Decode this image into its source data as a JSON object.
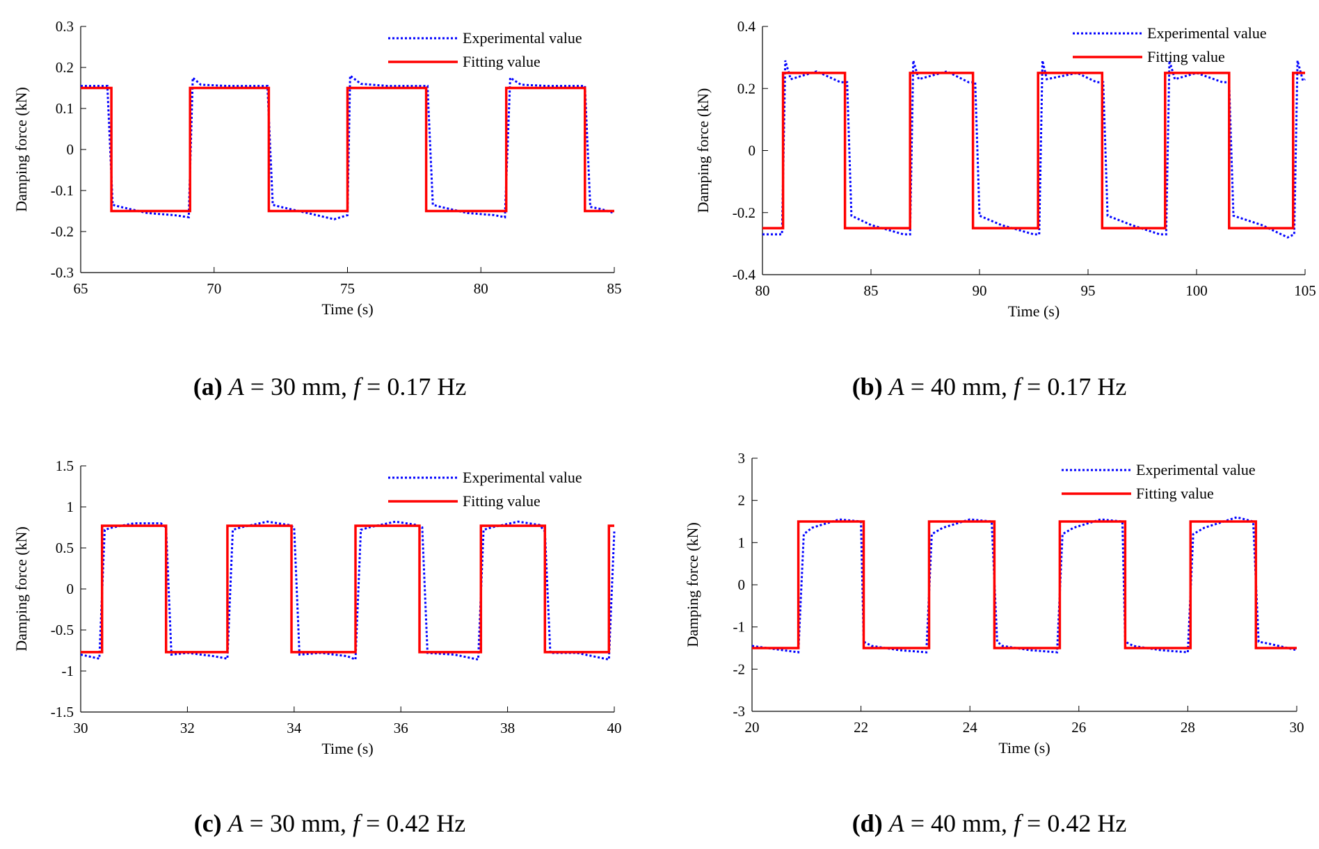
{
  "chart_data": [
    {
      "id": "a",
      "type": "line",
      "caption": {
        "letter": "(a)",
        "amp_var": "A",
        "amp_text": " = 30 mm, ",
        "freq_var": "f",
        "freq_text": " = 0.17 Hz"
      },
      "xlabel": "Time (s)",
      "ylabel": "Damping force (kN)",
      "xlim": [
        65,
        85
      ],
      "ylim": [
        -0.3,
        0.3
      ],
      "xticks": [
        65,
        70,
        75,
        80,
        85
      ],
      "xtick_labels": [
        "65",
        "70",
        "75",
        "80",
        "85"
      ],
      "yticks": [
        -0.3,
        -0.2,
        -0.1,
        0,
        0.1,
        0.2,
        0.3
      ],
      "ytick_labels": [
        "-0.3",
        "-0.2",
        "-0.1",
        "0",
        "0.1",
        "0.2",
        "0.3"
      ],
      "legend": {
        "position": "top-right",
        "entries": [
          "Experimental value",
          "Fitting value"
        ]
      },
      "series": [
        {
          "name": "Experimental value",
          "style": "dotted",
          "color": "#0000ff",
          "x": [
            65,
            66.0,
            66.2,
            66.5,
            67.5,
            68.5,
            69.05,
            69.2,
            69.5,
            70.5,
            71.5,
            72.0,
            72.2,
            72.5,
            73.5,
            74.5,
            75.0,
            75.1,
            75.5,
            76.5,
            77.5,
            78.0,
            78.2,
            78.5,
            79.5,
            80.5,
            80.9,
            81.1,
            81.5,
            82.5,
            83.5,
            83.9,
            84.1,
            84.5,
            85
          ],
          "values": [
            0.155,
            0.155,
            -0.135,
            -0.14,
            -0.155,
            -0.16,
            -0.165,
            0.175,
            0.158,
            0.155,
            0.155,
            0.155,
            -0.135,
            -0.14,
            -0.155,
            -0.17,
            -0.16,
            0.18,
            0.16,
            0.155,
            0.155,
            0.155,
            -0.135,
            -0.14,
            -0.155,
            -0.16,
            -0.165,
            0.175,
            0.158,
            0.155,
            0.155,
            0.155,
            -0.14,
            -0.145,
            -0.155
          ]
        },
        {
          "name": "Fitting value",
          "style": "solid",
          "color": "#ff0000",
          "x": [
            65,
            66.15,
            66.15,
            69.1,
            69.1,
            72.05,
            72.05,
            75.0,
            75.0,
            77.95,
            77.95,
            80.95,
            80.95,
            83.9,
            83.9,
            85
          ],
          "values": [
            0.15,
            0.15,
            -0.15,
            -0.15,
            0.15,
            0.15,
            -0.15,
            -0.15,
            0.15,
            0.15,
            -0.15,
            -0.15,
            0.15,
            0.15,
            -0.15,
            -0.15
          ]
        }
      ]
    },
    {
      "id": "b",
      "type": "line",
      "caption": {
        "letter": "(b)",
        "amp_var": "A",
        "amp_text": " = 40 mm, ",
        "freq_var": "f",
        "freq_text": " = 0.17 Hz"
      },
      "xlabel": "Time (s)",
      "ylabel": "Damping force (kN)",
      "xlim": [
        80,
        105
      ],
      "ylim": [
        -0.4,
        0.4
      ],
      "xticks": [
        80,
        85,
        90,
        95,
        100,
        105
      ],
      "xtick_labels": [
        "80",
        "85",
        "90",
        "95",
        "100",
        "105"
      ],
      "yticks": [
        -0.4,
        -0.2,
        0,
        0.2,
        0.4
      ],
      "ytick_labels": [
        "-0.4",
        "-0.2",
        "0",
        "0.2",
        "0.4"
      ],
      "legend": {
        "position": "top-right",
        "entries": [
          "Experimental value",
          "Fitting value"
        ]
      },
      "series": [
        {
          "name": "Experimental value",
          "style": "dotted",
          "color": "#0000ff",
          "x": [
            80,
            80.9,
            81.05,
            81.3,
            82.5,
            83.6,
            83.9,
            84.1,
            85,
            86.5,
            86.8,
            86.95,
            87.2,
            88.5,
            89.5,
            89.8,
            90.0,
            91.0,
            92.5,
            92.75,
            92.9,
            93.1,
            94.5,
            95.4,
            95.7,
            95.9,
            97.0,
            98.3,
            98.6,
            98.75,
            99.0,
            100.0,
            101.2,
            101.5,
            101.7,
            103.0,
            104.2,
            104.5,
            104.65,
            104.9,
            105
          ],
          "values": [
            -0.27,
            -0.27,
            0.29,
            0.23,
            0.255,
            0.22,
            0.22,
            -0.21,
            -0.24,
            -0.27,
            -0.27,
            0.29,
            0.23,
            0.255,
            0.22,
            0.22,
            -0.21,
            -0.24,
            -0.27,
            -0.27,
            0.29,
            0.23,
            0.25,
            0.22,
            0.22,
            -0.21,
            -0.24,
            -0.27,
            -0.27,
            0.29,
            0.23,
            0.25,
            0.22,
            0.22,
            -0.21,
            -0.24,
            -0.28,
            -0.27,
            0.29,
            0.225,
            0.23
          ]
        },
        {
          "name": "Fitting value",
          "style": "solid",
          "color": "#ff0000",
          "x": [
            80,
            80.95,
            80.95,
            83.8,
            83.8,
            86.8,
            86.8,
            89.7,
            89.7,
            92.7,
            92.7,
            95.65,
            95.65,
            98.55,
            98.55,
            101.5,
            101.5,
            104.45,
            104.45,
            105
          ],
          "values": [
            -0.25,
            -0.25,
            0.25,
            0.25,
            -0.25,
            -0.25,
            0.25,
            0.25,
            -0.25,
            -0.25,
            0.25,
            0.25,
            -0.25,
            -0.25,
            0.25,
            0.25,
            -0.25,
            -0.25,
            0.25,
            0.25
          ]
        }
      ]
    },
    {
      "id": "c",
      "type": "line",
      "caption": {
        "letter": "(c)",
        "amp_var": "A",
        "amp_text": " = 30 mm, ",
        "freq_var": "f",
        "freq_text": " = 0.42 Hz"
      },
      "xlabel": "Time (s)",
      "ylabel": "Damping force (kN)",
      "xlim": [
        30,
        40
      ],
      "ylim": [
        -1.5,
        1.5
      ],
      "xticks": [
        30,
        32,
        34,
        36,
        38,
        40
      ],
      "xtick_labels": [
        "30",
        "32",
        "34",
        "36",
        "38",
        "40"
      ],
      "yticks": [
        -1.5,
        -1,
        -0.5,
        0,
        0.5,
        1,
        1.5
      ],
      "ytick_labels": [
        "-1.5",
        "-1",
        "-0.5",
        "0",
        "0.5",
        "1",
        "1.5"
      ],
      "legend": {
        "position": "top-right",
        "entries": [
          "Experimental value",
          "Fitting value"
        ]
      },
      "series": [
        {
          "name": "Experimental value",
          "style": "dotted",
          "color": "#0000ff",
          "x": [
            30,
            30.35,
            30.45,
            30.6,
            31.0,
            31.5,
            31.6,
            31.7,
            32.0,
            32.5,
            32.75,
            32.85,
            33.0,
            33.5,
            33.9,
            34.0,
            34.1,
            34.5,
            35.0,
            35.15,
            35.25,
            35.4,
            35.9,
            36.3,
            36.4,
            36.5,
            37.0,
            37.45,
            37.55,
            37.7,
            38.2,
            38.6,
            38.7,
            38.8,
            39.3,
            39.9,
            40
          ],
          "values": [
            -0.8,
            -0.85,
            0.72,
            0.75,
            0.8,
            0.8,
            0.75,
            -0.8,
            -0.78,
            -0.82,
            -0.85,
            0.72,
            0.75,
            0.82,
            0.78,
            0.75,
            -0.8,
            -0.78,
            -0.82,
            -0.86,
            0.72,
            0.75,
            0.82,
            0.78,
            0.75,
            -0.78,
            -0.8,
            -0.86,
            0.72,
            0.75,
            0.82,
            0.78,
            0.7,
            -0.78,
            -0.78,
            -0.86,
            0.7
          ]
        },
        {
          "name": "Fitting value",
          "style": "solid",
          "color": "#ff0000",
          "x": [
            30,
            30.4,
            30.4,
            31.6,
            31.6,
            32.75,
            32.75,
            33.95,
            33.95,
            35.15,
            35.15,
            36.35,
            36.35,
            37.5,
            37.5,
            38.7,
            38.7,
            39.9,
            39.9,
            40
          ],
          "values": [
            -0.77,
            -0.77,
            0.77,
            0.77,
            -0.77,
            -0.77,
            0.77,
            0.77,
            -0.77,
            -0.77,
            0.77,
            0.77,
            -0.77,
            -0.77,
            0.77,
            0.77,
            -0.77,
            -0.77,
            0.77,
            0.77
          ]
        }
      ]
    },
    {
      "id": "d",
      "type": "line",
      "caption": {
        "letter": "(d)",
        "amp_var": "A",
        "amp_text": " = 40 mm, ",
        "freq_var": "f",
        "freq_text": " = 0.42 Hz"
      },
      "xlabel": "Time (s)",
      "ylabel": "Damping force (kN)",
      "xlim": [
        20,
        30
      ],
      "ylim": [
        -3,
        3
      ],
      "xticks": [
        20,
        22,
        24,
        26,
        28,
        30
      ],
      "xtick_labels": [
        "20",
        "22",
        "24",
        "26",
        "28",
        "30"
      ],
      "yticks": [
        -3,
        -2,
        -1,
        0,
        1,
        2,
        3
      ],
      "ytick_labels": [
        "-3",
        "-2",
        "-1",
        "0",
        "1",
        "2",
        "3"
      ],
      "legend": {
        "position": "top-right",
        "entries": [
          "Experimental value",
          "Fitting value"
        ]
      },
      "series": [
        {
          "name": "Experimental value",
          "style": "dotted",
          "color": "#0000ff",
          "x": [
            20,
            20.85,
            20.95,
            21.1,
            21.6,
            22.0,
            22.05,
            22.2,
            22.7,
            23.2,
            23.3,
            23.5,
            24.0,
            24.4,
            24.5,
            24.6,
            25.1,
            25.6,
            25.7,
            25.9,
            26.4,
            26.8,
            26.85,
            27.0,
            27.5,
            28.0,
            28.1,
            28.3,
            28.9,
            29.2,
            29.3,
            29.5,
            30
          ],
          "values": [
            -1.45,
            -1.6,
            1.2,
            1.35,
            1.55,
            1.5,
            -1.35,
            -1.45,
            -1.55,
            -1.6,
            1.2,
            1.35,
            1.55,
            1.5,
            -1.35,
            -1.45,
            -1.55,
            -1.6,
            1.2,
            1.35,
            1.55,
            1.5,
            -1.35,
            -1.45,
            -1.55,
            -1.6,
            1.2,
            1.35,
            1.6,
            1.5,
            -1.35,
            -1.4,
            -1.55
          ]
        },
        {
          "name": "Fitting value",
          "style": "solid",
          "color": "#ff0000",
          "x": [
            20,
            20.85,
            20.85,
            22.05,
            22.05,
            23.25,
            23.25,
            24.45,
            24.45,
            25.65,
            25.65,
            26.85,
            26.85,
            28.05,
            28.05,
            29.25,
            29.25,
            30
          ],
          "values": [
            -1.5,
            -1.5,
            1.5,
            1.5,
            -1.5,
            -1.5,
            1.5,
            1.5,
            -1.5,
            -1.5,
            1.5,
            1.5,
            -1.5,
            -1.5,
            1.5,
            1.5,
            -1.5,
            -1.5
          ]
        }
      ]
    }
  ]
}
